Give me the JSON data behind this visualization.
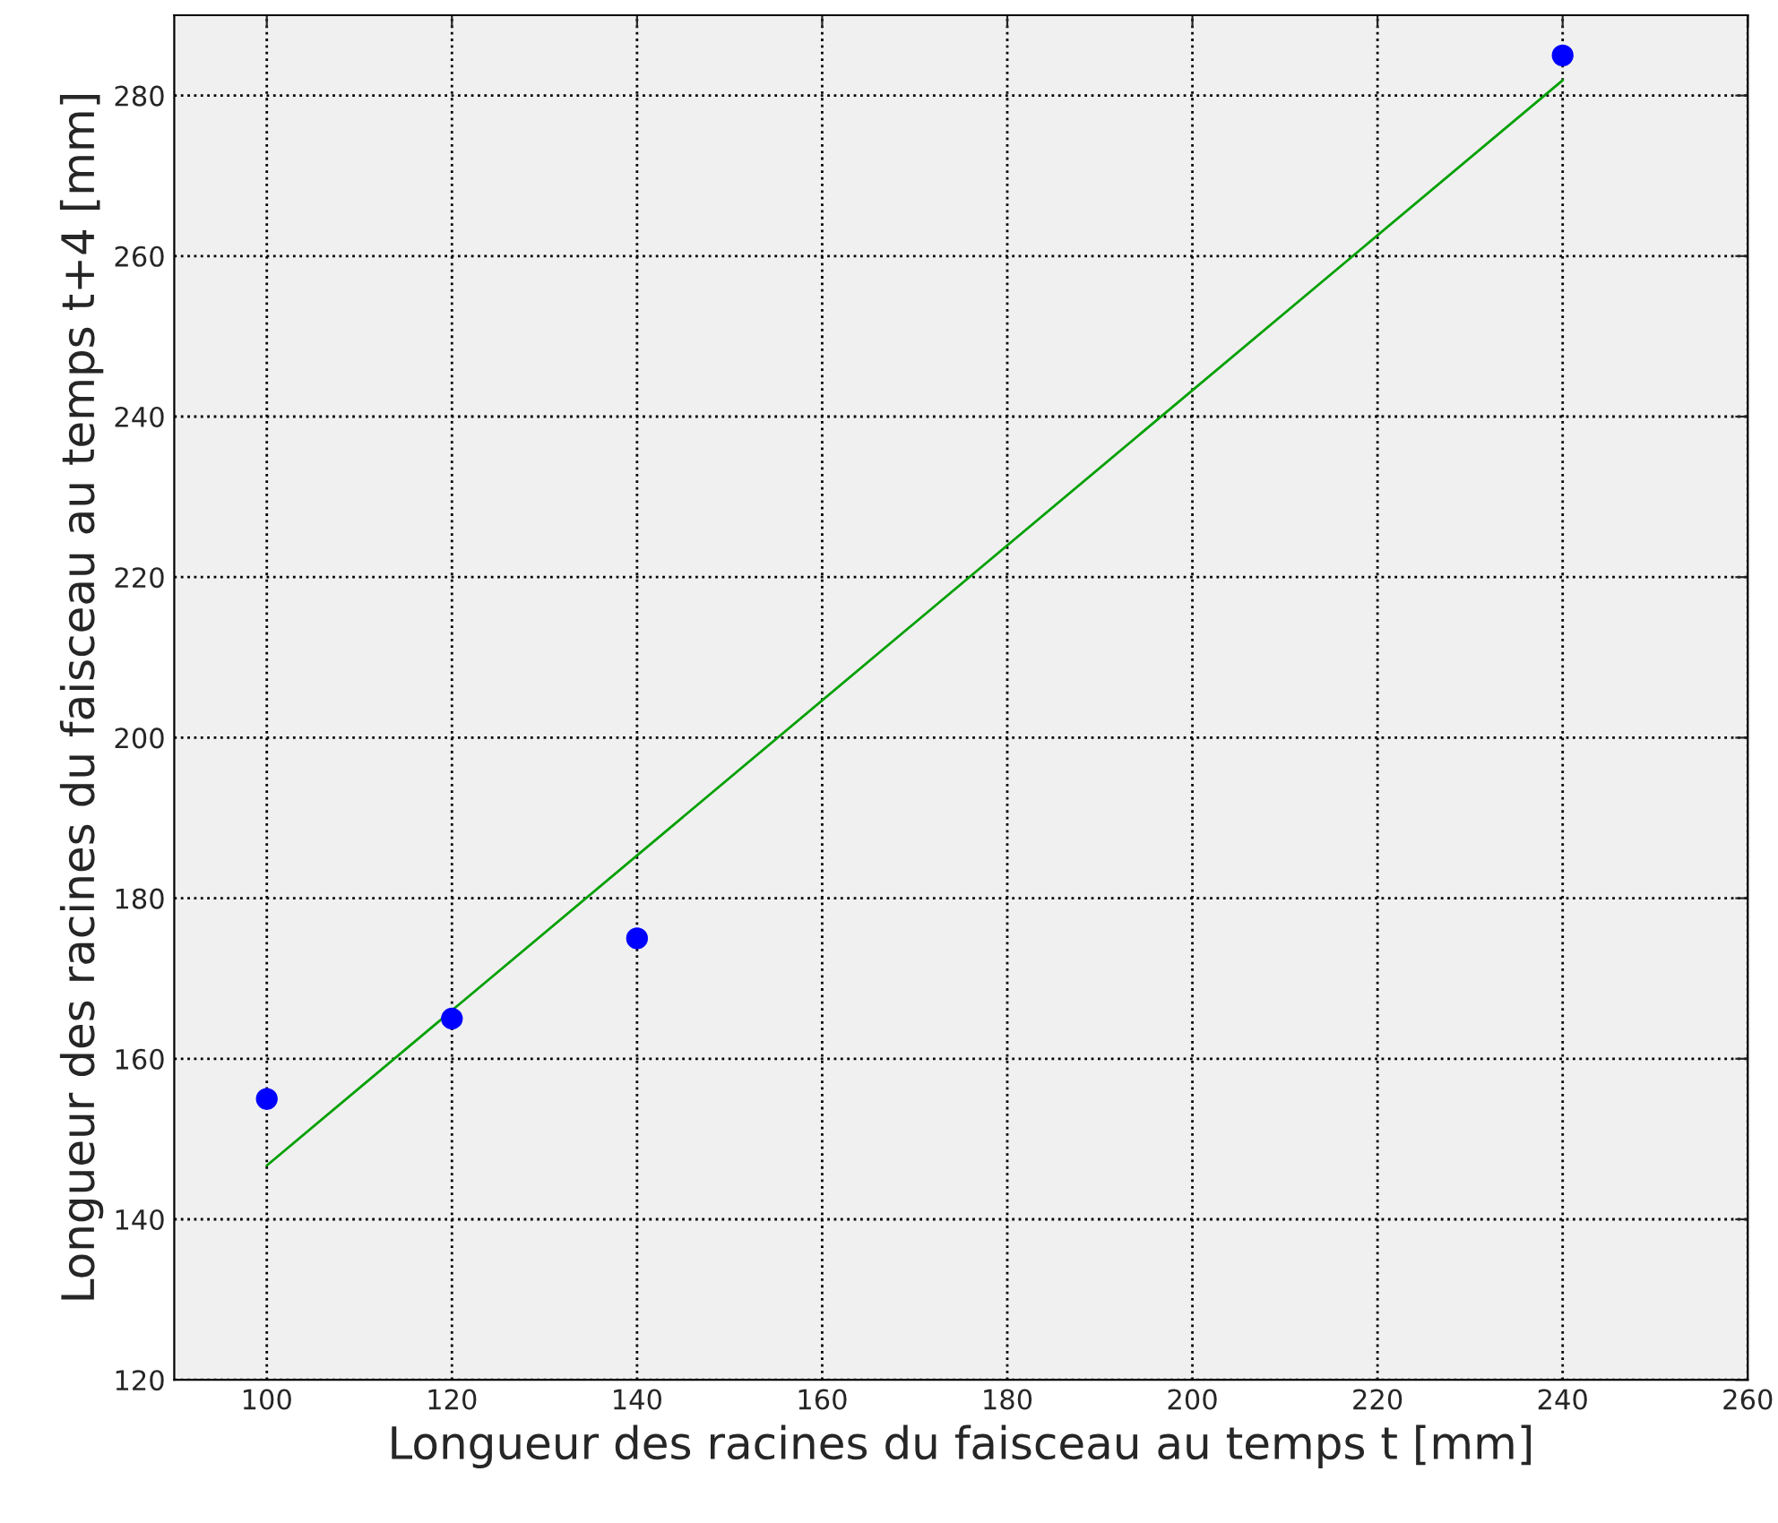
{
  "chart_data": {
    "type": "scatter",
    "xlabel": "Longueur des racines du faisceau au temps t [mm]",
    "ylabel": "Longueur des racines du faisceau au temps t+4 [mm]",
    "series": [
      {
        "color": "#0000ff",
        "x": [
          100,
          120,
          140,
          240
        ],
        "values": [
          155,
          165,
          175,
          285
        ],
        "marker": "circle"
      },
      {
        "type": "line",
        "color": "#00a000",
        "x": [
          100,
          240
        ],
        "values": [
          146.7,
          281.9
        ],
        "line_style": "solid"
      }
    ],
    "xlim": [
      90,
      260
    ],
    "xticks": [
      100,
      120,
      140,
      160,
      180,
      200,
      220,
      240,
      260
    ],
    "ylim": [
      120,
      290
    ],
    "yticks": [
      120,
      140,
      160,
      180,
      200,
      220,
      240,
      260,
      280
    ],
    "grid": true
  }
}
